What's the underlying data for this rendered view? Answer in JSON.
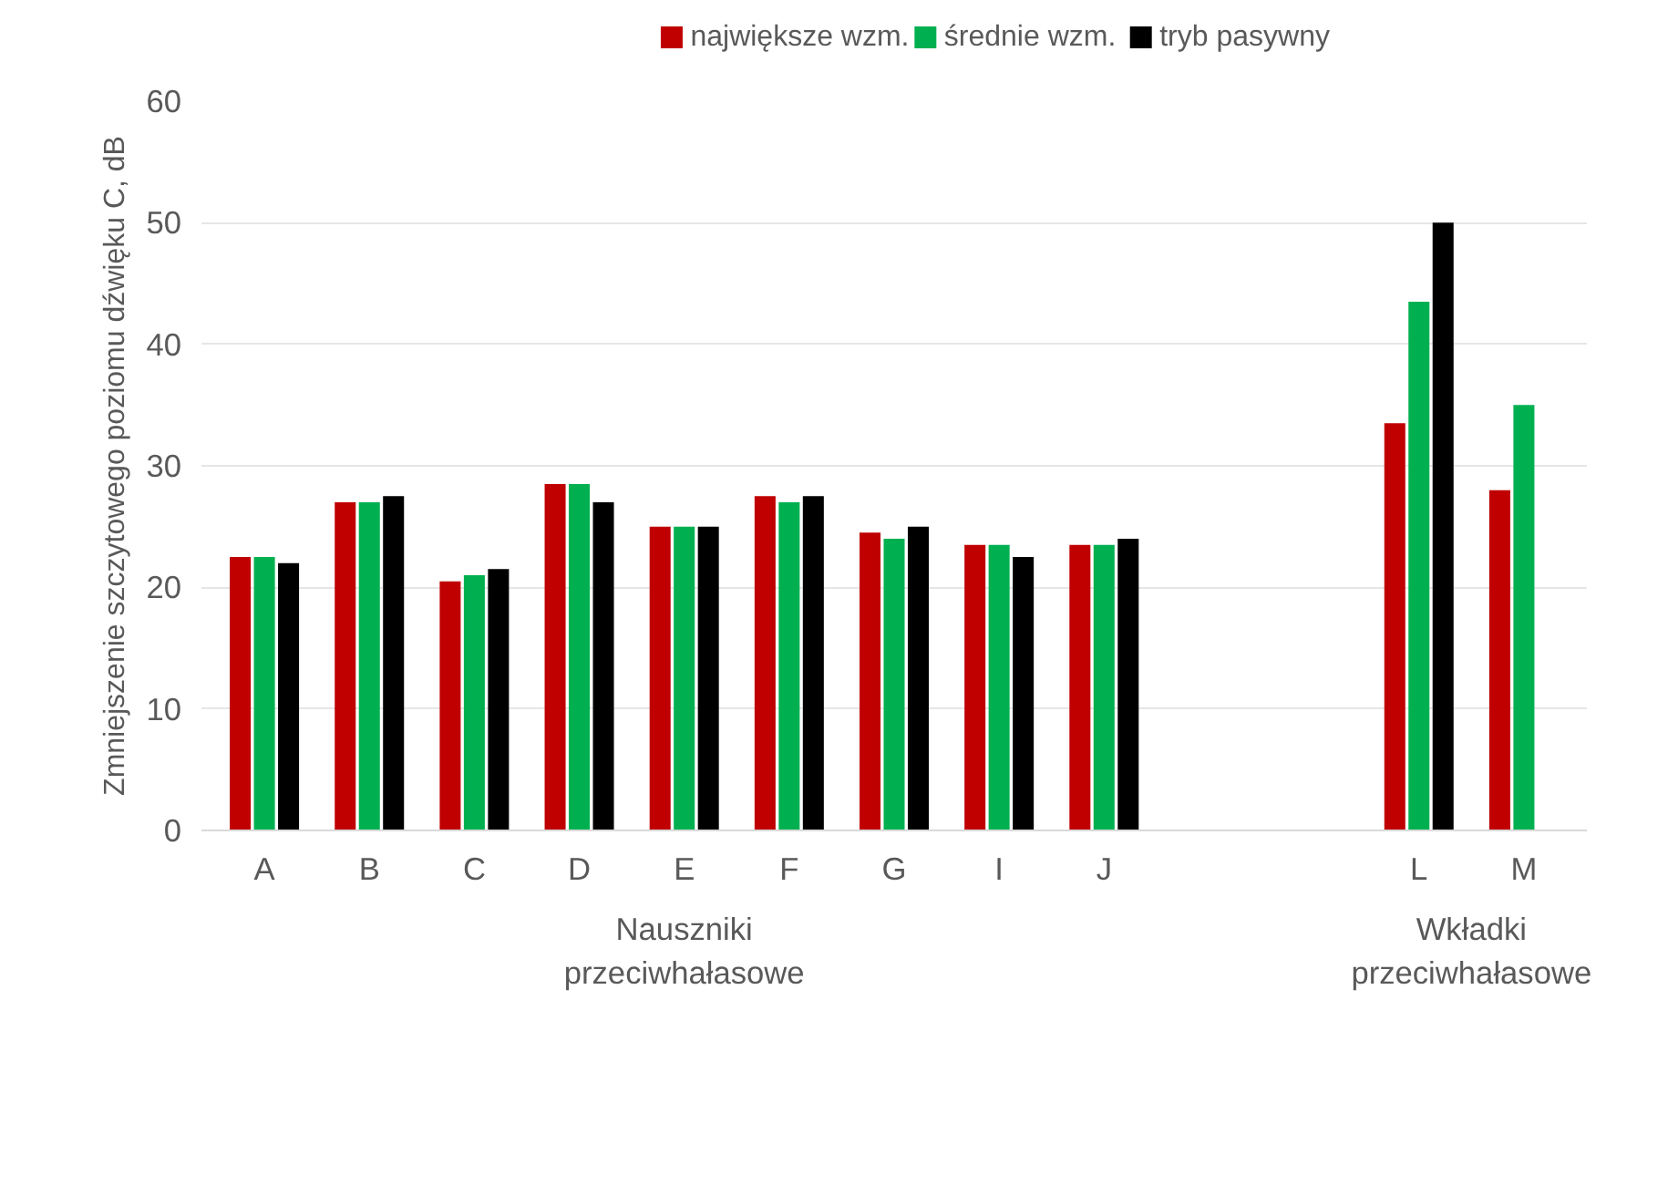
{
  "chart_data": {
    "type": "bar",
    "ylabel": "Zmniejszenie szczytowego poziomu dźwięku C, dB",
    "categories": [
      "A",
      "B",
      "C",
      "D",
      "E",
      "F",
      "G",
      "I",
      "J",
      null,
      null,
      "L",
      "M"
    ],
    "series": [
      {
        "name": "największe wzm.",
        "color": "#c00000",
        "values": [
          22.5,
          27,
          20.5,
          28.5,
          25,
          27.5,
          24.5,
          23.5,
          23.5,
          null,
          null,
          33.5,
          28
        ]
      },
      {
        "name": "średnie wzm.",
        "color": "#00b050",
        "values": [
          22.5,
          27,
          21,
          28.5,
          25,
          27,
          24,
          23.5,
          23.5,
          null,
          null,
          43.5,
          35
        ]
      },
      {
        "name": "tryb pasywny",
        "color": "#000000",
        "values": [
          22,
          27.5,
          21.5,
          27,
          25,
          27.5,
          25,
          22.5,
          24,
          null,
          null,
          50,
          null
        ]
      }
    ],
    "ylim": [
      0,
      60
    ],
    "yticks": [
      0,
      10,
      20,
      30,
      40,
      50,
      60
    ],
    "grid": "y",
    "legend": "top",
    "annotations": [
      "Nauszniki\nprzeciwhałasowe",
      "Wkładki\nprzeciwhałasowe"
    ]
  }
}
